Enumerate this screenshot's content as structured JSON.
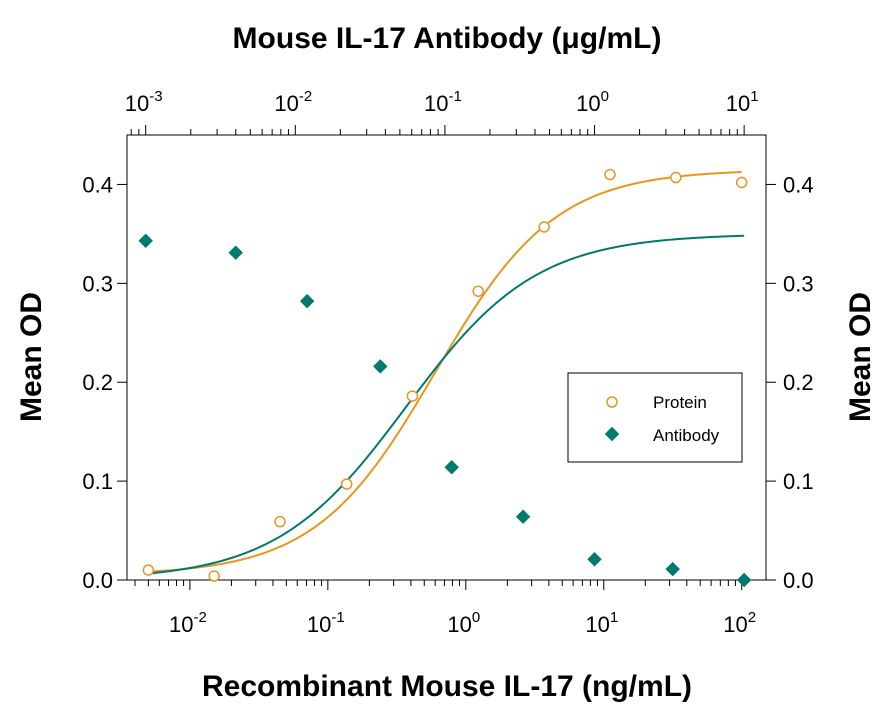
{
  "chart_data": {
    "type": "scatter",
    "title": "Mouse IL-17 Antibody (μg/mL)",
    "xlabel": "Recombinant Mouse IL-17 (ng/mL)",
    "ylabel": "Mean OD",
    "ylabel_right": "Mean OD",
    "x_scale": "log",
    "xlim": [
      0.0035,
      150
    ],
    "ylim": [
      0,
      0.45
    ],
    "top_axis": {
      "label": "Mouse IL-17 Antibody (μg/mL)",
      "scale": "log",
      "xlim": [
        0.00075,
        14
      ],
      "ticks": [
        {
          "base": "10",
          "exp": "-3",
          "value": 0.001
        },
        {
          "base": "10",
          "exp": "-2",
          "value": 0.01
        },
        {
          "base": "10",
          "exp": "-1",
          "value": 0.1
        },
        {
          "base": "10",
          "exp": "0",
          "value": 1
        },
        {
          "base": "10",
          "exp": "1",
          "value": 10
        }
      ]
    },
    "x_ticks": [
      {
        "base": "10",
        "exp": "-2",
        "value": 0.01
      },
      {
        "base": "10",
        "exp": "-1",
        "value": 0.1
      },
      {
        "base": "10",
        "exp": "0",
        "value": 1
      },
      {
        "base": "10",
        "exp": "1",
        "value": 10
      },
      {
        "base": "10",
        "exp": "2",
        "value": 100
      }
    ],
    "y_ticks": [
      {
        "label": "0.0",
        "value": 0.0
      },
      {
        "label": "0.1",
        "value": 0.1
      },
      {
        "label": "0.2",
        "value": 0.2
      },
      {
        "label": "0.3",
        "value": 0.3
      },
      {
        "label": "0.4",
        "value": 0.4
      }
    ],
    "legend_position": "right",
    "grid": false,
    "series": [
      {
        "name": "Protein",
        "marker": "open-circle",
        "color": "#e8961e",
        "axis": "bottom",
        "x": [
          0.005,
          0.015,
          0.045,
          0.137,
          0.41,
          1.23,
          3.7,
          11.1,
          33.3,
          100
        ],
        "y": [
          0.01,
          0.004,
          0.059,
          0.097,
          0.186,
          0.292,
          0.357,
          0.41,
          0.407,
          0.402
        ],
        "fit": {
          "bottom": 0.005,
          "top": 0.415,
          "ec50": 0.6,
          "hill": 1.0
        }
      },
      {
        "name": "Antibody",
        "marker": "filled-diamond",
        "color": "#007a6e",
        "axis": "top",
        "x": [
          0.001,
          0.004,
          0.012,
          0.037,
          0.111,
          0.333,
          1.0,
          3.33,
          10
        ],
        "y": [
          0.343,
          0.331,
          0.282,
          0.216,
          0.114,
          0.064,
          0.021,
          0.011,
          0.0
        ],
        "fit": {
          "bottom": 0.0,
          "top": 0.35,
          "ec50": 0.055,
          "hill": 1.0
        }
      }
    ]
  }
}
